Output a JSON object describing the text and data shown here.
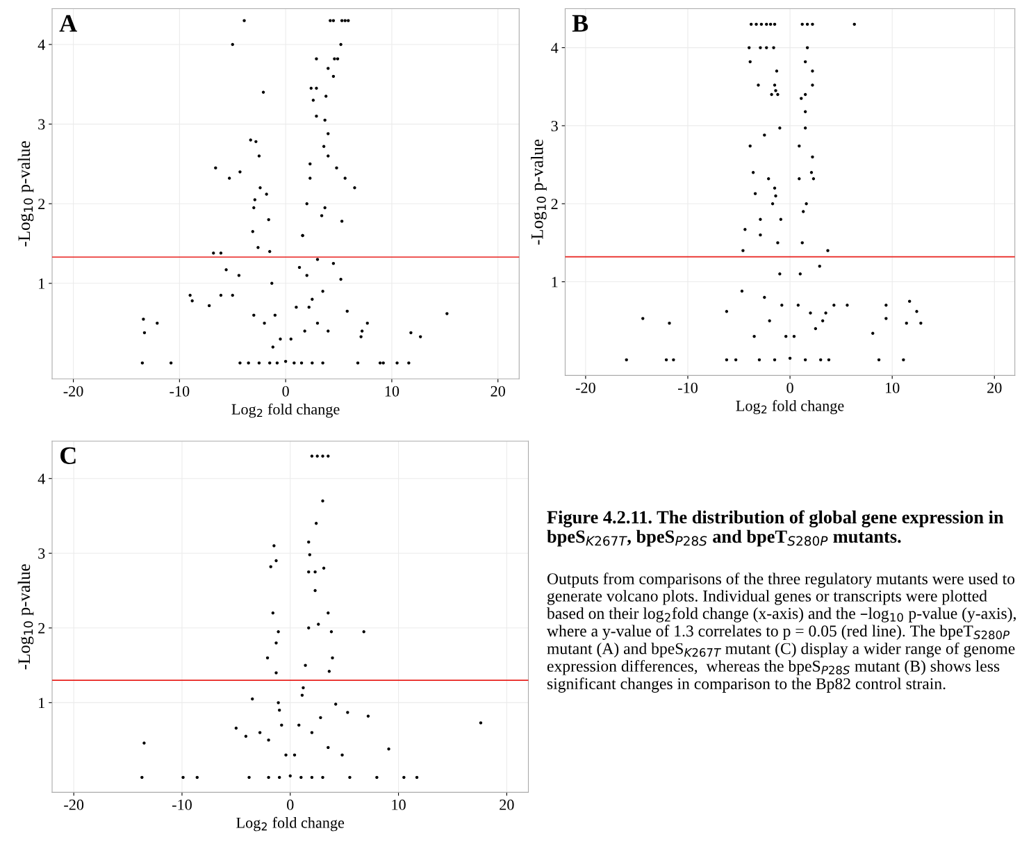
{
  "chart_data": [
    {
      "type": "scatter",
      "title": "A",
      "xlabel": "Log$_{2}$ fold change",
      "ylabel": "-Log$_{10}$ p-value",
      "xlim": [
        -22,
        22
      ],
      "ylim": [
        -0.2,
        4.45
      ],
      "xticks": [
        -20,
        -10,
        0,
        10,
        20
      ],
      "yticks": [
        1,
        2,
        3,
        4
      ],
      "grid": true,
      "marker": "circle",
      "legend": false,
      "ref_lines": [
        {
          "axis": "y",
          "value": 1.33,
          "color": "#e8201c"
        }
      ],
      "series": [
        {
          "color": "#000000",
          "x": [
            -3.9,
            4.2,
            4.5,
            5.3,
            5.6,
            5.9,
            -5,
            5.2,
            2.9,
            4.6,
            4.9,
            4.0,
            4.5,
            2.4,
            2.9,
            -2.1,
            3.8,
            2.6,
            2.9,
            3.7,
            4.0,
            -3.3,
            -2.8,
            3.6,
            -2.5,
            4.0,
            -6.6,
            4.8,
            -4.3,
            -5.3,
            2.3,
            5.6,
            -2.4,
            6.5,
            -1.8,
            -2.9,
            -3.0,
            3.7,
            3.4,
            5.3,
            -3.1,
            1.6,
            -2.6,
            -6.1,
            -6.8,
            4.5,
            -5.6,
            -4.4,
            5.2,
            -9,
            -6.1,
            -5.0,
            -8.8,
            -7.2,
            5.8,
            15.2,
            -13.4,
            -12.1,
            7.7,
            7.2,
            -13.3,
            11.8,
            12.7,
            7.1,
            -13.5,
            -10.8,
            -4.3,
            -3.5,
            -2.5,
            -1.5,
            -0.8,
            0.8,
            1.5,
            2.5,
            3.5,
            6.8,
            8.9,
            9.2,
            10.5,
            11.6,
            0,
            -0.5,
            -1.0,
            -1.3,
            -1.5,
            -1.6,
            0.5,
            1.0,
            1.3,
            1.6,
            2.0,
            2.3,
            -2.0,
            -3.0,
            2.5,
            3.0,
            3.5,
            4.0,
            2.0,
            3.0,
            -1.2,
            1.8,
            2.2
          ],
          "values": [
            4.3,
            4.3,
            4.3,
            4.3,
            4.3,
            4.3,
            4.0,
            4.0,
            3.82,
            3.82,
            3.82,
            3.7,
            3.6,
            3.45,
            3.45,
            3.4,
            3.35,
            3.3,
            3.1,
            3.05,
            2.88,
            2.8,
            2.78,
            2.72,
            2.6,
            2.6,
            2.45,
            2.45,
            2.4,
            2.32,
            2.32,
            2.32,
            2.2,
            2.2,
            2.12,
            2.05,
            1.95,
            1.95,
            1.85,
            1.78,
            1.65,
            1.6,
            1.45,
            1.38,
            1.38,
            1.25,
            1.17,
            1.1,
            1.05,
            0.85,
            0.85,
            0.85,
            0.78,
            0.72,
            0.65,
            0.62,
            0.55,
            0.5,
            0.5,
            0.4,
            0.38,
            0.38,
            0.33,
            0.33,
            0,
            0,
            0,
            0,
            0,
            0,
            0,
            0,
            0,
            0,
            0,
            0,
            0,
            0,
            0,
            0,
            0.02,
            0.3,
            0.6,
            1.0,
            1.4,
            1.8,
            0.3,
            0.7,
            1.2,
            1.6,
            2.0,
            2.5,
            0.5,
            0.6,
            0.8,
            0.5,
            0.9,
            0.4,
            1.1,
            1.3,
            0.2,
            0.4,
            0.7
          ]
        }
      ]
    },
    {
      "type": "scatter",
      "title": "B",
      "xlabel": "Log$_{2}$ fold change",
      "ylabel": "-Log$_{10}$ p-value",
      "xlim": [
        -22,
        22
      ],
      "ylim": [
        -0.2,
        4.5
      ],
      "xticks": [
        -20,
        -10,
        0,
        10,
        20
      ],
      "yticks": [
        1,
        2,
        3,
        4
      ],
      "grid": true,
      "marker": "circle",
      "legend": false,
      "ref_lines": [
        {
          "axis": "y",
          "value": 1.32,
          "color": "#e8201c"
        }
      ],
      "series": [
        {
          "color": "#000000",
          "x": [
            -3.8,
            -3.3,
            -2.8,
            -2.3,
            -1.9,
            -1.5,
            1.2,
            1.7,
            2.2,
            6.3,
            -4,
            -2.9,
            -2.3,
            -1.6,
            1.7,
            -3.9,
            1.5,
            -1.3,
            2.2,
            -3.1,
            -1.5,
            2.2,
            -1.4,
            -1.8,
            -1.2,
            1.5,
            1.1,
            1.5,
            -1.0,
            1.5,
            -2.5,
            -3.9,
            0.9,
            2.2,
            -3.6,
            2.1,
            -2.1,
            0.9,
            2.3,
            -3.4,
            -1.4,
            -1.7,
            1.6,
            -2.9,
            -0.9,
            -4.4,
            -2.9,
            -4.6,
            3.7,
            2.9,
            -4.7,
            11.7,
            5.6,
            4.3,
            9.4,
            -6.2,
            12.4,
            3.5,
            -14.4,
            9.4,
            -11.8,
            11.4,
            12.8,
            8.1,
            -16,
            -12.1,
            -11.4,
            -6.2,
            -5.3,
            -3,
            -1.5,
            1.5,
            3.0,
            3.8,
            8.7,
            11.1,
            0,
            -0.4,
            -0.8,
            -1.0,
            -1.2,
            0.4,
            0.8,
            1.0,
            1.2,
            -2.0,
            -2.5,
            2.0,
            2.5,
            -1.5,
            1.3,
            -3.5,
            3.2
          ],
          "values": [
            4.3,
            4.3,
            4.3,
            4.3,
            4.3,
            4.3,
            4.3,
            4.3,
            4.3,
            4.3,
            4.0,
            4.0,
            4.0,
            4.0,
            4.0,
            3.82,
            3.82,
            3.7,
            3.7,
            3.52,
            3.52,
            3.52,
            3.45,
            3.4,
            3.4,
            3.4,
            3.35,
            3.18,
            2.97,
            2.97,
            2.88,
            2.74,
            2.74,
            2.6,
            2.4,
            2.4,
            2.32,
            2.32,
            2.32,
            2.13,
            2.1,
            2.0,
            2.0,
            1.8,
            1.8,
            1.67,
            1.6,
            1.4,
            1.4,
            1.2,
            0.88,
            0.75,
            0.7,
            0.7,
            0.7,
            0.62,
            0.62,
            0.6,
            0.53,
            0.53,
            0.47,
            0.47,
            0.47,
            0.34,
            0,
            0,
            0,
            0,
            0,
            0,
            0,
            0,
            0,
            0,
            0,
            0,
            0.02,
            0.3,
            0.7,
            1.1,
            1.5,
            0.3,
            0.7,
            1.1,
            1.5,
            0.5,
            0.8,
            0.6,
            0.4,
            2.2,
            1.9,
            0.3,
            0.5
          ]
        }
      ]
    },
    {
      "type": "scatter",
      "title": "C",
      "xlabel": "Log$_{2}$ fold change",
      "ylabel": "-Log$_{10}$ p-value",
      "xlim": [
        -22,
        22
      ],
      "ylim": [
        -0.2,
        4.5
      ],
      "xticks": [
        -20,
        -10,
        0,
        10,
        20
      ],
      "yticks": [
        1,
        2,
        3,
        4
      ],
      "grid": true,
      "marker": "circle",
      "legend": false,
      "ref_lines": [
        {
          "axis": "y",
          "value": 1.3,
          "color": "#e8201c"
        }
      ],
      "series": [
        {
          "color": "#000000",
          "x": [
            2.0,
            2.5,
            3.0,
            3.5,
            3.0,
            2.4,
            1.7,
            -1.5,
            1.8,
            -1.3,
            -1.8,
            3.1,
            1.7,
            2.3,
            2.3,
            -1.6,
            3.5,
            2.6,
            -1.1,
            3.8,
            6.8,
            -1.3,
            -2.1,
            3.9,
            3.6,
            -3.5,
            4.2,
            5.3,
            7.2,
            17.6,
            -5.0,
            -4.1,
            -13.5,
            9.1,
            4.8,
            -13.7,
            -9.9,
            -8.6,
            -3.8,
            -2,
            -1,
            1,
            2,
            3,
            5.5,
            8.0,
            10.5,
            11.7,
            0,
            -0.4,
            -0.8,
            -1.1,
            -1.3,
            0.4,
            0.8,
            1.1,
            1.4,
            1.7,
            -2.0,
            -2.8,
            2.0,
            2.8,
            3.5,
            -1.0,
            1.2
          ],
          "values": [
            4.3,
            4.3,
            4.3,
            4.3,
            3.7,
            3.4,
            3.15,
            3.1,
            2.98,
            2.9,
            2.82,
            2.8,
            2.75,
            2.75,
            2.5,
            2.2,
            2.2,
            2.05,
            1.95,
            1.95,
            1.95,
            1.8,
            1.6,
            1.6,
            1.42,
            1.05,
            0.98,
            0.87,
            0.82,
            0.73,
            0.66,
            0.55,
            0.46,
            0.38,
            0.3,
            0,
            0,
            0,
            0,
            0,
            0,
            0,
            0,
            0,
            0,
            0,
            0,
            0,
            0.02,
            0.3,
            0.7,
            1.0,
            1.4,
            0.3,
            0.7,
            1.1,
            1.5,
            2.0,
            0.5,
            0.6,
            0.6,
            0.8,
            0.4,
            0.9,
            1.2
          ]
        }
      ]
    },
    {
      "type": "other",
      "annotations": [
        "Figure 4.2.11. The distribution of global gene expression in bpeS$_{K267T}$, bpeS$_{P28S}$ and bpeT$_{S280P}$ mutants.",
        "Outputs from comparisons of the three regulatory mutants were used to generate volcano plots. Individual genes or transcripts were plotted based on their log$_{2}$fold change (x-axis) and the –log$_{10}$ p-value (y-axis), where a y-value of 1.3 correlates to p = 0.05 (red line). The bpeT$_{S280P}$ mutant (A) and bpeS$_{K267T}$ mutant (C) display a wider range of genome expression differences,  whereas the bpeS$_{P28S}$ mutant (B) shows less significant changes in comparison to the Bp82 control strain."
      ]
    }
  ]
}
